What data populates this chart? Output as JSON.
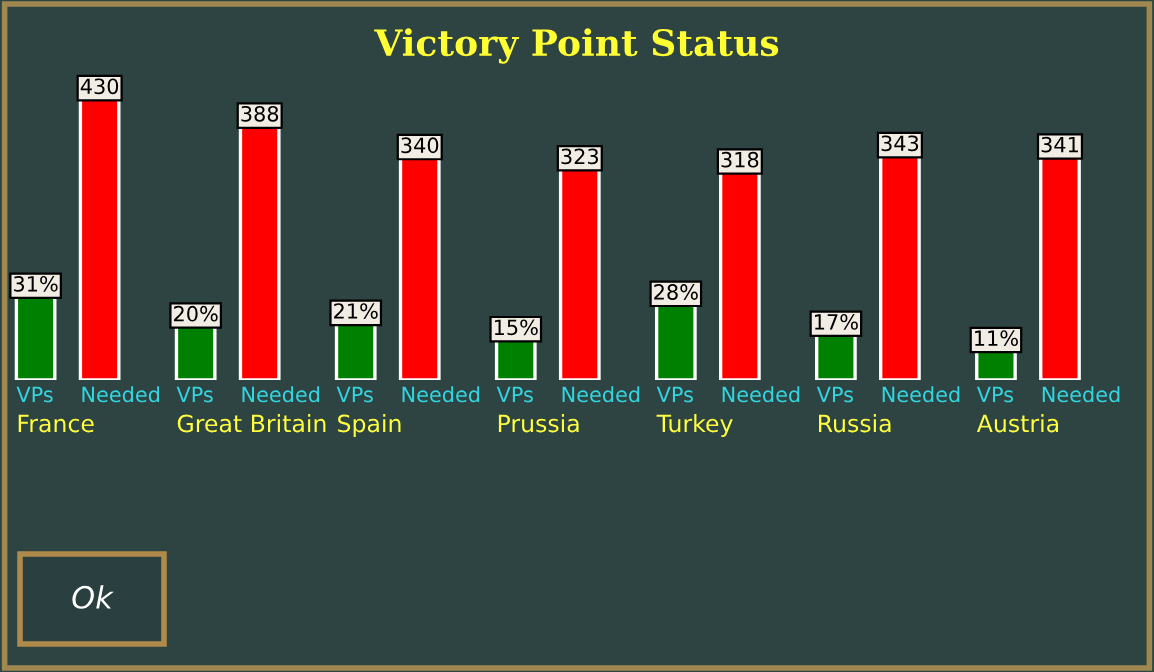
{
  "chart_data": {
    "type": "bar",
    "title": "Victory Point Status",
    "legend": false,
    "categories": [
      "France",
      "Great Britain",
      "Spain",
      "Prussia",
      "Turkey",
      "Russia",
      "Austria"
    ],
    "series": [
      {
        "name": "VPs",
        "color": "#008000",
        "axis": "y2",
        "values": [
          31,
          20,
          21,
          15,
          28,
          17,
          11
        ],
        "value_labels": [
          "31%",
          "20%",
          "21%",
          "15%",
          "28%",
          "17%",
          "11%"
        ]
      },
      {
        "name": "Needed",
        "color": "#ff0000",
        "values": [
          430,
          388,
          340,
          323,
          318,
          343,
          341
        ],
        "value_labels": [
          "430",
          "388",
          "340",
          "323",
          "318",
          "343",
          "341"
        ]
      }
    ],
    "annotations": [
      "Ok"
    ]
  }
}
